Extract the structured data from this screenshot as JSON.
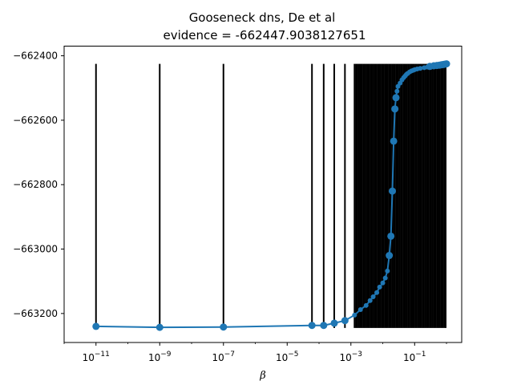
{
  "chart_data": {
    "type": "line",
    "title": "Gooseneck dns, De et al",
    "subtitle": "evidence = -662447.9038127651",
    "xlabel": "β",
    "ylabel": "",
    "xscale": "log",
    "xlim": [
      1e-12,
      3
    ],
    "ylim": [
      -663290,
      -662370
    ],
    "grid": false,
    "x_ticks": [
      {
        "value": 1e-11,
        "label": "10",
        "exp": "−11"
      },
      {
        "value": 1e-09,
        "label": "10",
        "exp": "−9"
      },
      {
        "value": 1e-07,
        "label": "10",
        "exp": "−7"
      },
      {
        "value": 1e-05,
        "label": "10",
        "exp": "−5"
      },
      {
        "value": 0.001,
        "label": "10",
        "exp": "−3"
      },
      {
        "value": 0.1,
        "label": "10",
        "exp": "−1"
      }
    ],
    "y_ticks": [
      {
        "value": -662400,
        "label": "−662400"
      },
      {
        "value": -662600,
        "label": "−662600"
      },
      {
        "value": -662800,
        "label": "−662800"
      },
      {
        "value": -663000,
        "label": "−663000"
      },
      {
        "value": -663200,
        "label": "−663200"
      }
    ],
    "line_color": "#1f77b4",
    "vline_color": "#000000",
    "vlines": {
      "ymin": -663245,
      "ymax": -662425,
      "x": [
        1e-11,
        1e-09,
        1e-07,
        6e-05,
        0.00014,
        0.0003,
        0.00065
      ]
    },
    "series": [
      {
        "x": [
          1e-11,
          1e-09,
          1e-07,
          6e-05,
          0.00014,
          0.0003,
          0.00065,
          0.0013,
          0.002,
          0.003,
          0.004,
          0.005,
          0.0065,
          0.008,
          0.01,
          0.012,
          0.014,
          0.016,
          0.018,
          0.02,
          0.022,
          0.024,
          0.026,
          0.028,
          0.03,
          0.035,
          0.04,
          0.045,
          0.05,
          0.055,
          0.06,
          0.07,
          0.08,
          0.09,
          0.1,
          0.12,
          0.15,
          0.2,
          0.25,
          0.3,
          0.4,
          0.5,
          0.6,
          0.7,
          0.8,
          0.9,
          1.0
        ],
        "y": [
          -663240,
          -663243,
          -663242,
          -663237,
          -663237,
          -663230,
          -663222,
          -663205,
          -663188,
          -663175,
          -663160,
          -663148,
          -663135,
          -663118,
          -663105,
          -663090,
          -663068,
          -663020,
          -662960,
          -662820,
          -662665,
          -662565,
          -662530,
          -662510,
          -662495,
          -662485,
          -662475,
          -662468,
          -662463,
          -662458,
          -662455,
          -662450,
          -662447,
          -662445,
          -662443,
          -662441,
          -662439,
          -662437,
          -662435,
          -662433,
          -662431,
          -662430,
          -662429,
          -662428,
          -662427,
          -662426,
          -662425
        ],
        "markers": [
          1e-11,
          1e-09,
          1e-07,
          6e-05,
          0.00014,
          0.0003,
          0.00065,
          0.016,
          0.018,
          0.02,
          0.022,
          0.024,
          0.026,
          0.3,
          0.4,
          0.5,
          0.6,
          0.7,
          0.8,
          0.9,
          1.0
        ]
      }
    ]
  }
}
